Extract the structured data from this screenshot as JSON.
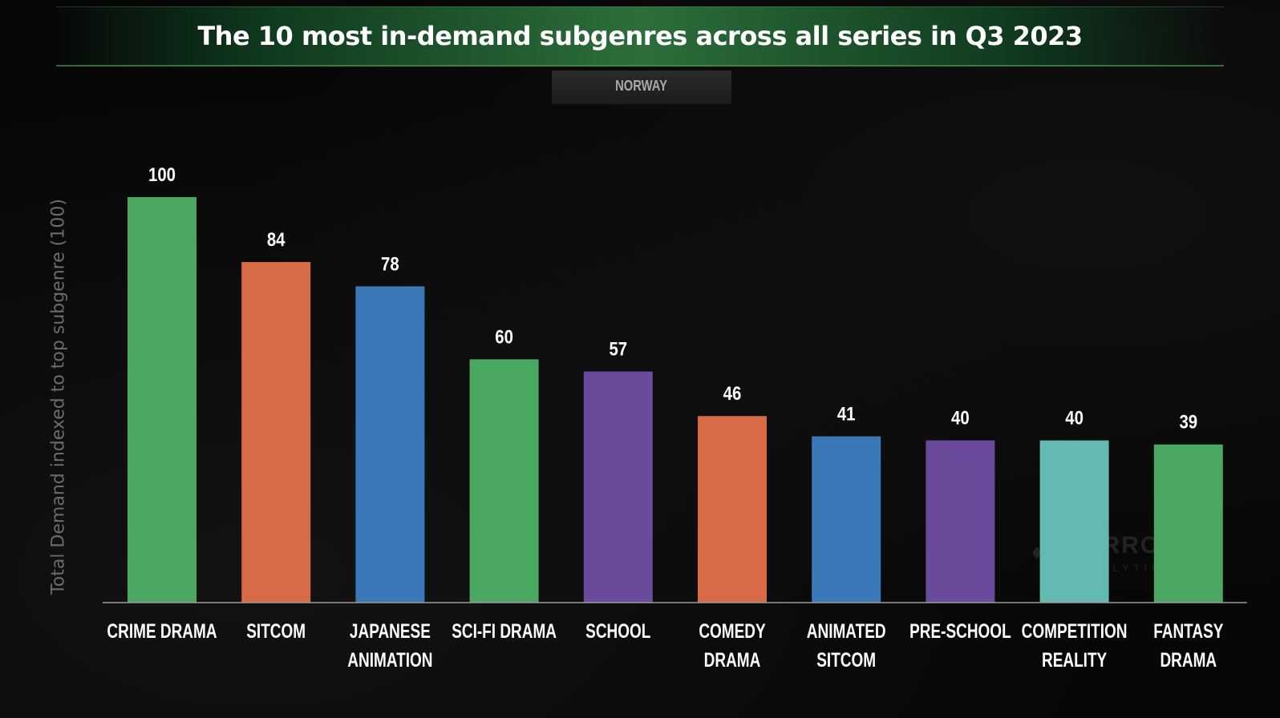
{
  "header": {
    "title": "The 10 most in-demand subgenres across all series in Q3 2023",
    "region_tab": "NORWAY"
  },
  "watermark": {
    "brand": "PARROT",
    "sub": "ANALYTICS",
    "icon": "parrot-logo-icon"
  },
  "colors": {
    "green": "#4aa862",
    "orange": "#d86b45",
    "blue": "#3a78b8",
    "purple": "#6a4a9a",
    "teal": "#62bab3",
    "title_banner": "#2d6e3b",
    "background": "#070707"
  },
  "chart_data": {
    "type": "bar",
    "title": "The 10 most in-demand subgenres across all series in Q3 2023",
    "subtitle": "NORWAY",
    "xlabel": "",
    "ylabel": "Total Demand indexed to top subgenre (100)",
    "ylim": [
      0,
      100
    ],
    "grid": false,
    "legend": "none",
    "categories": [
      [
        "CRIME DRAMA"
      ],
      [
        "SITCOM"
      ],
      [
        "JAPANESE",
        "ANIMATION"
      ],
      [
        "SCI-FI DRAMA"
      ],
      [
        "SCHOOL"
      ],
      [
        "COMEDY",
        "DRAMA"
      ],
      [
        "ANIMATED",
        "SITCOM"
      ],
      [
        "PRE-SCHOOL"
      ],
      [
        "COMPETITION",
        "REALITY"
      ],
      [
        "FANTASY",
        "DRAMA"
      ]
    ],
    "values": [
      100,
      84,
      78,
      60,
      57,
      46,
      41,
      40,
      40,
      39
    ],
    "bar_colors": [
      "#4aa862",
      "#d86b45",
      "#3a78b8",
      "#4aa862",
      "#6a4a9a",
      "#d86b45",
      "#3a78b8",
      "#6a4a9a",
      "#62bab3",
      "#4aa862"
    ]
  }
}
